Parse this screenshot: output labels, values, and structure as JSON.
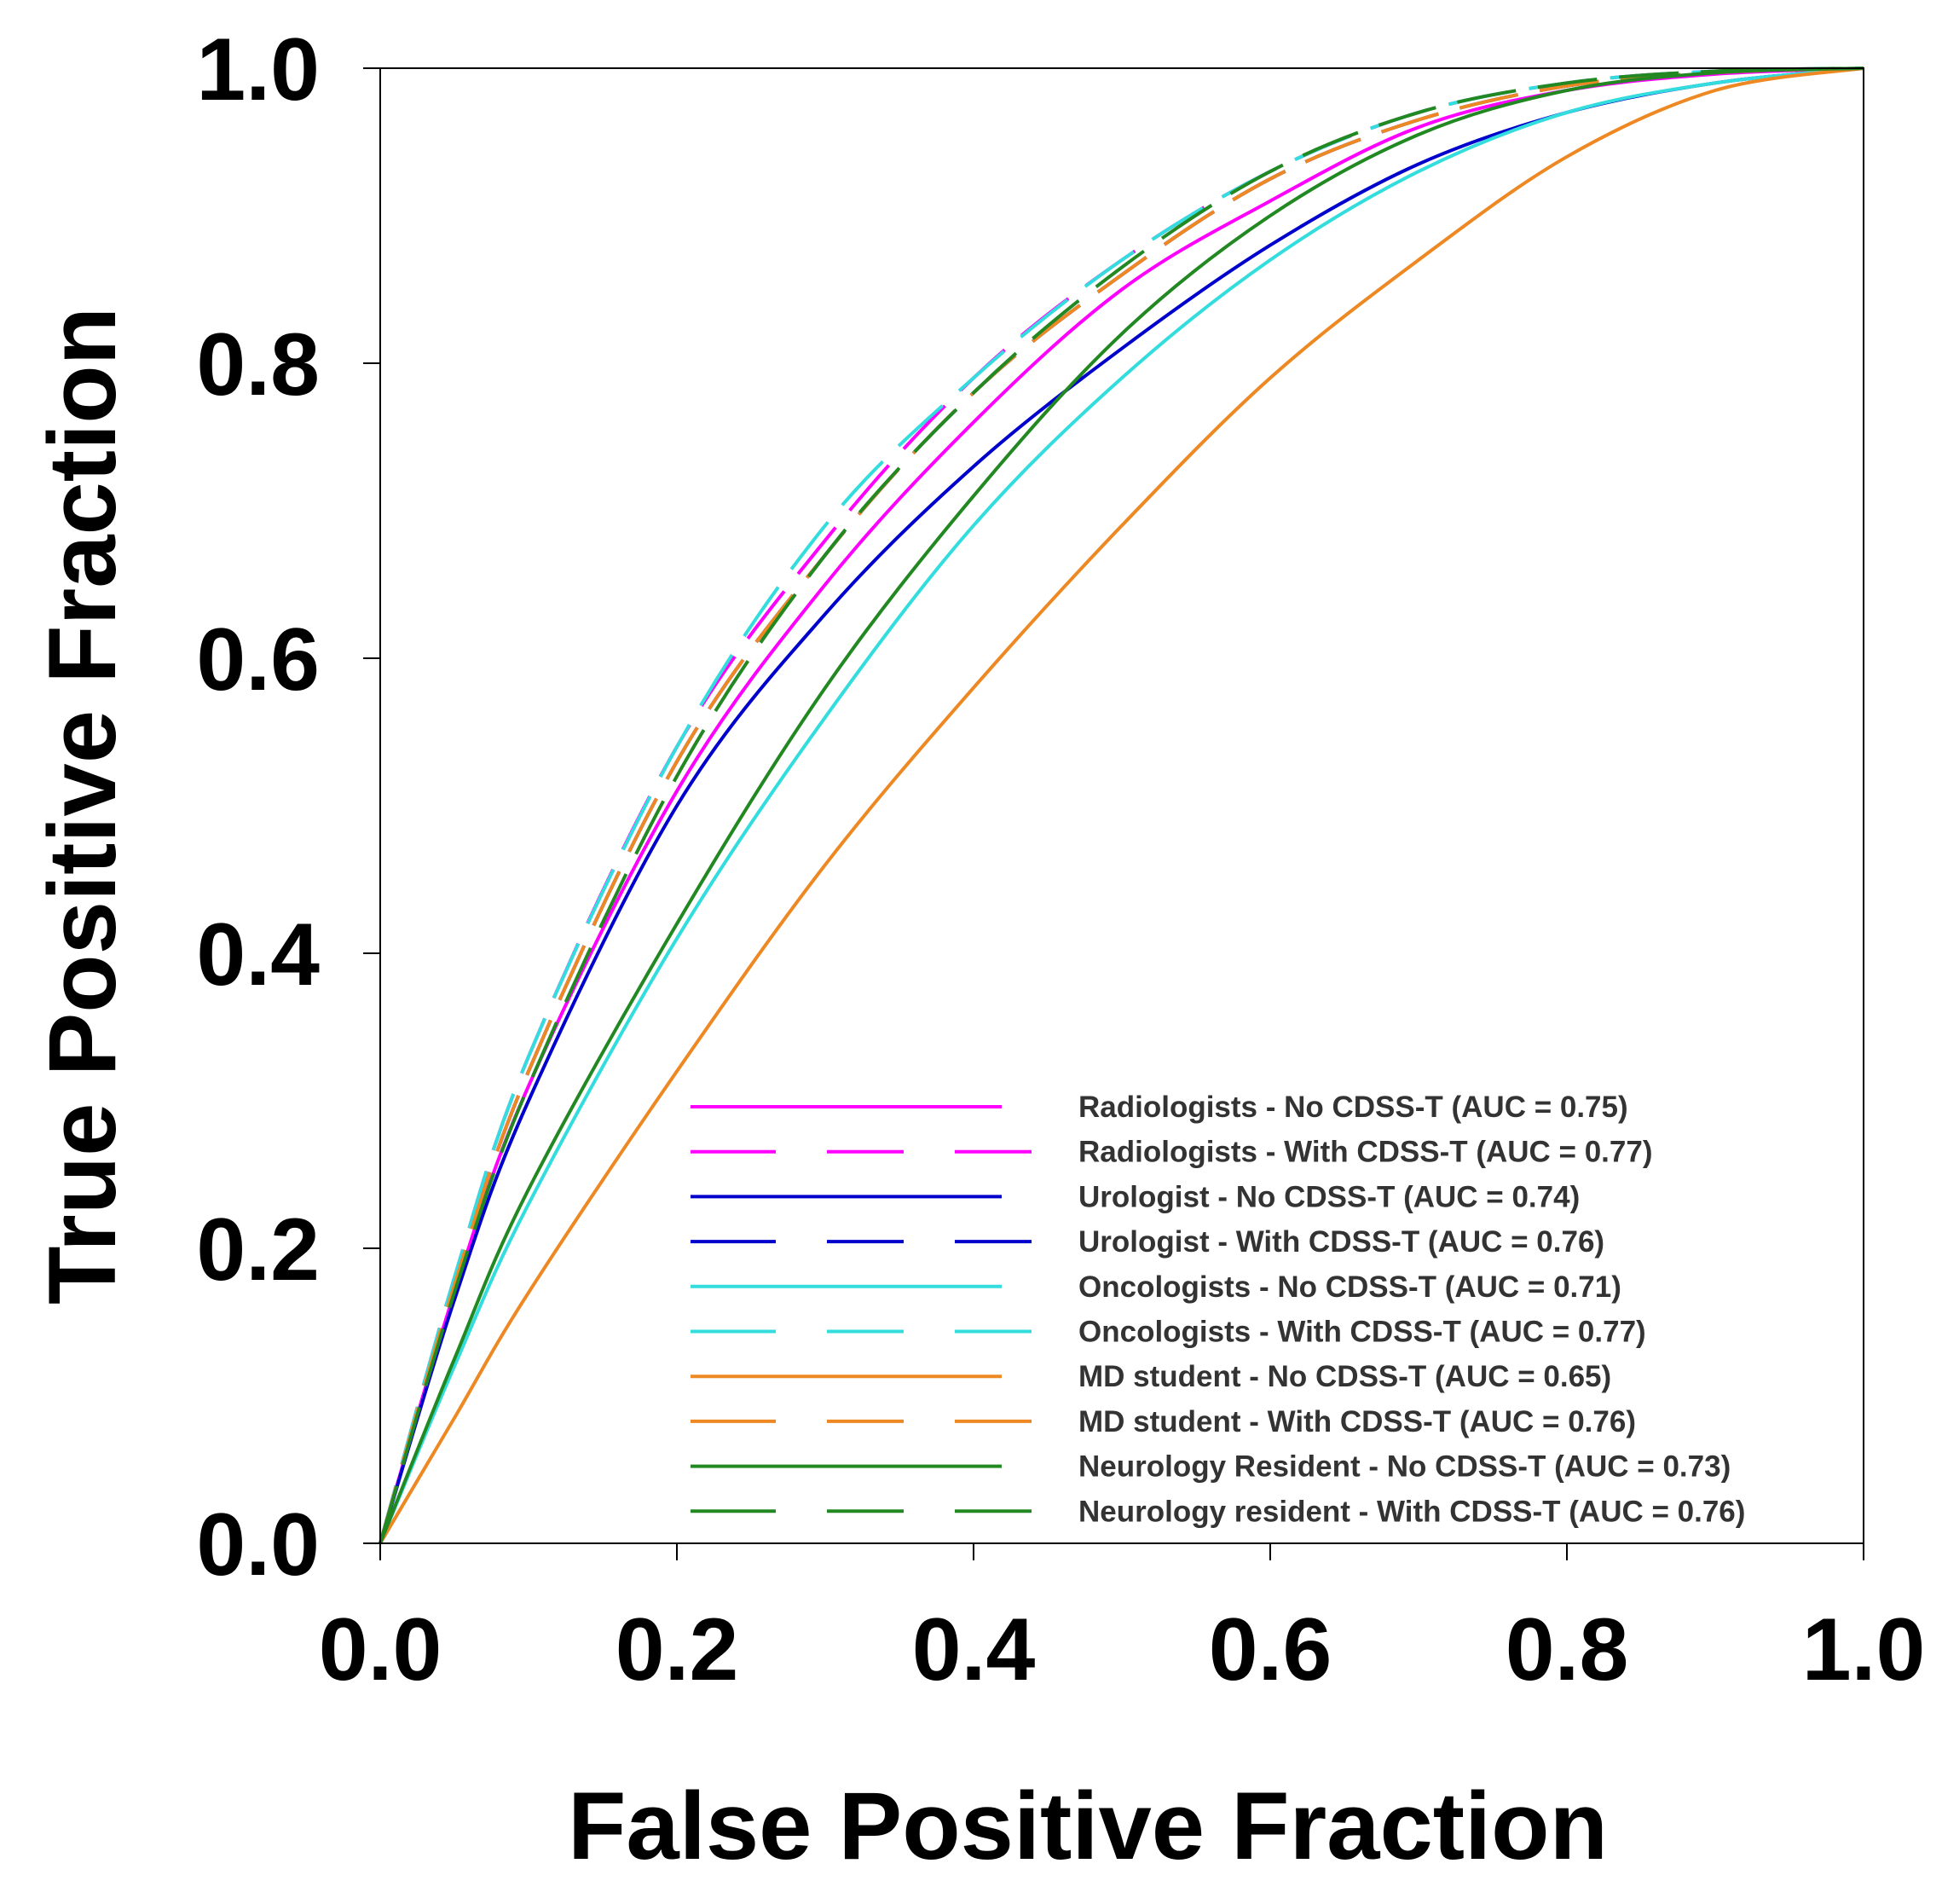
{
  "chart_data": {
    "type": "line",
    "title": "",
    "xlabel": "False Positive Fraction",
    "ylabel": "True Positive Fraction",
    "xlim": [
      0,
      1
    ],
    "ylim": [
      0,
      1
    ],
    "xticks": [
      "0.0",
      "0.2",
      "0.4",
      "0.6",
      "0.8",
      "1.0"
    ],
    "yticks": [
      "0.0",
      "0.2",
      "0.4",
      "0.6",
      "0.8",
      "1.0"
    ],
    "grid": false,
    "legend_position": "bottom-right",
    "x": [
      0,
      0.05,
      0.1,
      0.2,
      0.3,
      0.4,
      0.5,
      0.6,
      0.7,
      0.8,
      0.9,
      1.0
    ],
    "series": [
      {
        "name": "Radiologists - No CDSS-T (AUC = 0.75)",
        "color": "#ff00ff",
        "dash": "solid",
        "values": [
          0,
          0.17,
          0.31,
          0.51,
          0.65,
          0.76,
          0.85,
          0.91,
          0.96,
          0.985,
          0.996,
          1
        ]
      },
      {
        "name": "Radiologists - With CDSS-T (AUC = 0.77)",
        "color": "#ff00ff",
        "dash": "dashed",
        "values": [
          0,
          0.18,
          0.33,
          0.54,
          0.68,
          0.79,
          0.87,
          0.93,
          0.97,
          0.99,
          0.998,
          1
        ]
      },
      {
        "name": "Urologist - No CDSS-T (AUC = 0.74)",
        "color": "#0000cc",
        "dash": "solid",
        "values": [
          0,
          0.165,
          0.3,
          0.5,
          0.63,
          0.73,
          0.81,
          0.88,
          0.935,
          0.97,
          0.99,
          1
        ]
      },
      {
        "name": "Urologist - With CDSS-T (AUC = 0.76)",
        "color": "#0000cc",
        "dash": "dashed",
        "values": [
          0,
          0.175,
          0.32,
          0.53,
          0.67,
          0.78,
          0.86,
          0.925,
          0.965,
          0.988,
          0.997,
          1
        ]
      },
      {
        "name": "Oncologists - No CDSS-T (AUC = 0.71)",
        "color": "#33dddd",
        "dash": "solid",
        "values": [
          0,
          0.12,
          0.23,
          0.41,
          0.56,
          0.69,
          0.79,
          0.87,
          0.93,
          0.97,
          0.99,
          1
        ]
      },
      {
        "name": "Oncologists - With CDSS-T (AUC = 0.77)",
        "color": "#33dddd",
        "dash": "dashed",
        "values": [
          0,
          0.18,
          0.33,
          0.54,
          0.69,
          0.79,
          0.87,
          0.93,
          0.97,
          0.99,
          0.998,
          1
        ]
      },
      {
        "name": "MD student - No CDSS-T (AUC = 0.65)",
        "color": "#ee8822",
        "dash": "solid",
        "values": [
          0,
          0.085,
          0.17,
          0.32,
          0.46,
          0.58,
          0.69,
          0.79,
          0.87,
          0.94,
          0.985,
          1
        ]
      },
      {
        "name": "MD student - With CDSS-T (AUC = 0.76)",
        "color": "#ee8822",
        "dash": "dashed",
        "values": [
          0,
          0.175,
          0.32,
          0.53,
          0.67,
          0.78,
          0.86,
          0.925,
          0.965,
          0.988,
          0.997,
          1
        ]
      },
      {
        "name": "Neurology Resident - No CDSS-T (AUC = 0.73)",
        "color": "#228822",
        "dash": "solid",
        "values": [
          0,
          0.125,
          0.24,
          0.42,
          0.58,
          0.71,
          0.82,
          0.9,
          0.955,
          0.985,
          0.997,
          1
        ]
      },
      {
        "name": "Neurology resident - With CDSS-T (AUC = 0.76)",
        "color": "#228822",
        "dash": "dashed",
        "values": [
          0,
          0.17,
          0.31,
          0.52,
          0.67,
          0.78,
          0.865,
          0.93,
          0.97,
          0.99,
          0.998,
          1
        ]
      }
    ]
  }
}
